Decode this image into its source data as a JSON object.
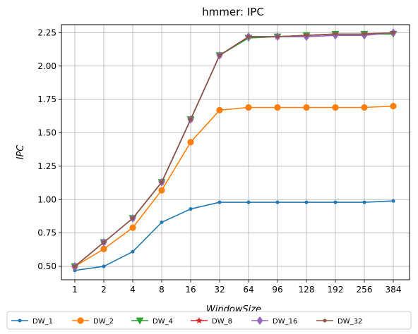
{
  "chart_data": {
    "type": "line",
    "title": "hmmer: IPC",
    "xlabel": "WindowSize",
    "ylabel": "IPC",
    "categories": [
      "1",
      "2",
      "4",
      "8",
      "16",
      "32",
      "64",
      "96",
      "128",
      "192",
      "256",
      "384"
    ],
    "ylim": [
      0.4,
      2.31
    ],
    "yticks": [
      "0.50",
      "0.75",
      "1.00",
      "1.25",
      "1.50",
      "1.75",
      "2.00",
      "2.25"
    ],
    "grid": true,
    "legend_position": "bottom",
    "series": [
      {
        "name": "DW_1",
        "color": "#1f77b4",
        "marker": "point",
        "values": [
          0.47,
          0.5,
          0.61,
          0.83,
          0.93,
          0.98,
          0.98,
          0.98,
          0.98,
          0.98,
          0.98,
          0.99
        ]
      },
      {
        "name": "DW_2",
        "color": "#ff7f0e",
        "marker": "circle",
        "values": [
          0.5,
          0.63,
          0.79,
          1.07,
          1.43,
          1.67,
          1.69,
          1.69,
          1.69,
          1.69,
          1.69,
          1.7
        ]
      },
      {
        "name": "DW_4",
        "color": "#2ca02c",
        "marker": "triangle",
        "values": [
          0.5,
          0.68,
          0.86,
          1.13,
          1.6,
          2.08,
          2.21,
          2.22,
          2.23,
          2.24,
          2.24,
          2.24
        ]
      },
      {
        "name": "DW_8",
        "color": "#d62728",
        "marker": "star",
        "values": [
          0.5,
          0.68,
          0.86,
          1.13,
          1.6,
          2.08,
          2.22,
          2.22,
          2.23,
          2.24,
          2.24,
          2.25
        ]
      },
      {
        "name": "DW_16",
        "color": "#9467bd",
        "marker": "diamond",
        "values": [
          0.5,
          0.68,
          0.86,
          1.13,
          1.6,
          2.08,
          2.22,
          2.22,
          2.22,
          2.23,
          2.23,
          2.25
        ]
      },
      {
        "name": "DW_32",
        "color": "#8c564b",
        "marker": "hexagon",
        "values": [
          0.5,
          0.68,
          0.86,
          1.13,
          1.6,
          2.08,
          2.22,
          2.22,
          2.23,
          2.24,
          2.24,
          2.25
        ]
      }
    ]
  }
}
